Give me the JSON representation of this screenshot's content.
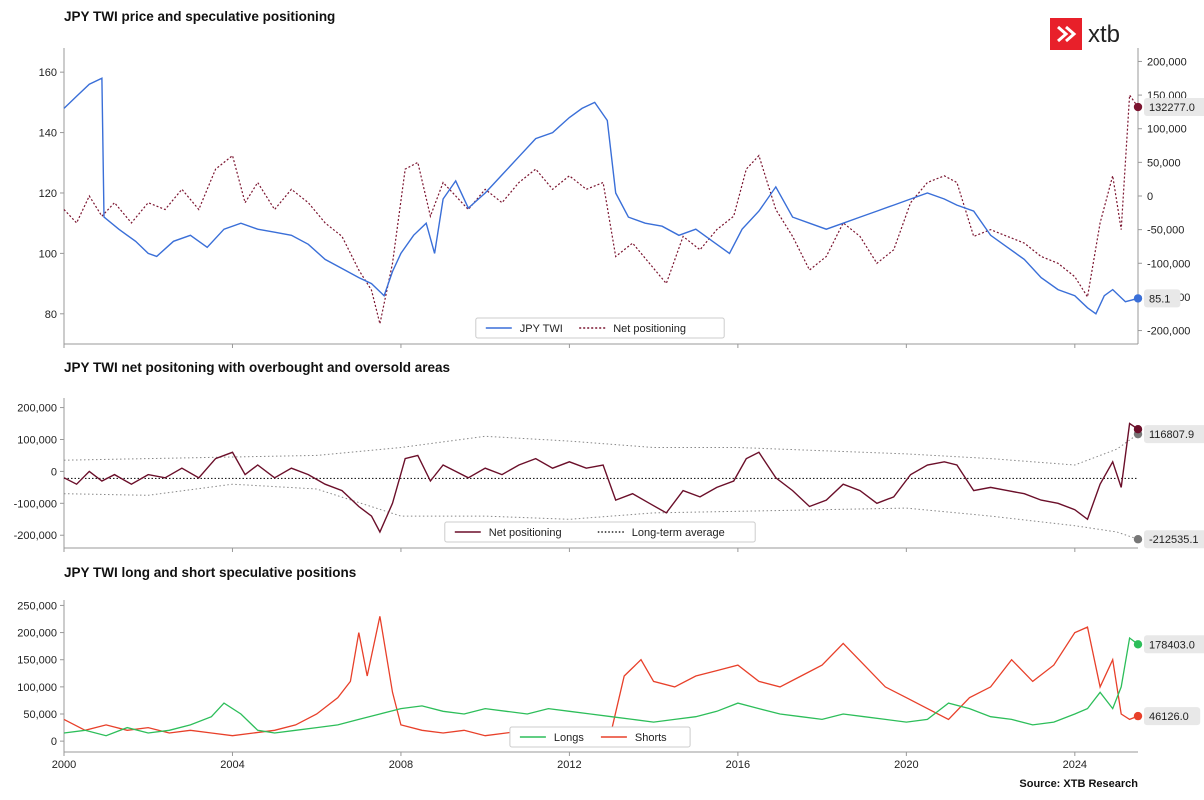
{
  "brand": {
    "logo_text": "xtb",
    "accent": "#e8202a"
  },
  "source": "Source: XTB Research",
  "colors": {
    "twi": "#3a6fd8",
    "net_dotted": "#7b1530",
    "net": "#6b0f2a",
    "avg": "#444444",
    "longs": "#2dbe5a",
    "shorts": "#e8402a",
    "band": "#888888"
  },
  "chart_data": [
    {
      "type": "line",
      "title": "JPY TWI price and speculative positioning",
      "x_ticks": [
        "2000",
        "2004",
        "2008",
        "2012",
        "2016",
        "2020",
        "2024"
      ],
      "xlim": [
        2000,
        2025.5
      ],
      "y_left_ticks": [
        "80",
        "100",
        "120",
        "140",
        "160"
      ],
      "ylim_left": [
        70,
        168
      ],
      "y_right_ticks": [
        "-200,000",
        "-150,000",
        "-100,000",
        "-50,000",
        "0",
        "50,000",
        "100,000",
        "150,000",
        "200,000"
      ],
      "ylim_right": [
        -220000,
        220000
      ],
      "series": [
        {
          "name": "JPY TWI",
          "axis": "left",
          "style": "solid",
          "x": [
            2000.0,
            2000.3,
            2000.6,
            2000.9,
            2000.95,
            2001.3,
            2001.7,
            2002.0,
            2002.2,
            2002.6,
            2003.0,
            2003.4,
            2003.8,
            2004.2,
            2004.6,
            2005.0,
            2005.4,
            2005.8,
            2006.2,
            2006.6,
            2007.0,
            2007.3,
            2007.6,
            2007.8,
            2008.0,
            2008.3,
            2008.6,
            2008.8,
            2009.0,
            2009.3,
            2009.6,
            2010.0,
            2010.4,
            2010.8,
            2011.2,
            2011.6,
            2012.0,
            2012.3,
            2012.6,
            2012.9,
            2013.1,
            2013.4,
            2013.8,
            2014.2,
            2014.6,
            2015.0,
            2015.4,
            2015.8,
            2016.1,
            2016.5,
            2016.9,
            2017.3,
            2017.7,
            2018.1,
            2018.5,
            2018.9,
            2019.3,
            2019.7,
            2020.1,
            2020.5,
            2020.9,
            2021.2,
            2021.6,
            2022.0,
            2022.4,
            2022.8,
            2023.2,
            2023.6,
            2024.0,
            2024.3,
            2024.5,
            2024.7,
            2024.9,
            2025.2,
            2025.5
          ],
          "y": [
            148,
            152,
            156,
            158,
            112,
            108,
            104,
            100,
            99,
            104,
            106,
            102,
            108,
            110,
            108,
            107,
            106,
            103,
            98,
            95,
            92,
            90,
            86,
            94,
            100,
            106,
            110,
            100,
            118,
            124,
            115,
            120,
            126,
            132,
            138,
            140,
            145,
            148,
            150,
            144,
            120,
            112,
            110,
            109,
            106,
            108,
            104,
            100,
            108,
            114,
            122,
            112,
            110,
            108,
            110,
            112,
            114,
            116,
            118,
            120,
            118,
            116,
            114,
            106,
            102,
            98,
            92,
            88,
            86,
            82,
            80,
            86,
            88,
            84,
            85.1
          ],
          "end_label": "85.1"
        },
        {
          "name": "Net positioning",
          "axis": "right",
          "style": "dotted",
          "x": [
            2000.0,
            2000.3,
            2000.6,
            2000.9,
            2001.2,
            2001.6,
            2002.0,
            2002.4,
            2002.8,
            2003.2,
            2003.6,
            2004.0,
            2004.3,
            2004.6,
            2005.0,
            2005.4,
            2005.8,
            2006.2,
            2006.6,
            2007.0,
            2007.3,
            2007.5,
            2007.8,
            2008.1,
            2008.4,
            2008.7,
            2009.0,
            2009.3,
            2009.6,
            2010.0,
            2010.4,
            2010.8,
            2011.2,
            2011.6,
            2012.0,
            2012.4,
            2012.8,
            2013.1,
            2013.5,
            2013.9,
            2014.3,
            2014.7,
            2015.1,
            2015.5,
            2015.9,
            2016.2,
            2016.5,
            2016.9,
            2017.3,
            2017.7,
            2018.1,
            2018.5,
            2018.9,
            2019.3,
            2019.7,
            2020.1,
            2020.5,
            2020.9,
            2021.2,
            2021.6,
            2022.0,
            2022.4,
            2022.8,
            2023.2,
            2023.6,
            2024.0,
            2024.3,
            2024.6,
            2024.9,
            2025.1,
            2025.3,
            2025.5
          ],
          "y": [
            -20000,
            -40000,
            0,
            -30000,
            -10000,
            -40000,
            -10000,
            -20000,
            10000,
            -20000,
            40000,
            60000,
            -10000,
            20000,
            -20000,
            10000,
            -10000,
            -40000,
            -60000,
            -110000,
            -140000,
            -190000,
            -100000,
            40000,
            50000,
            -30000,
            20000,
            0,
            -20000,
            10000,
            -10000,
            20000,
            40000,
            10000,
            30000,
            10000,
            20000,
            -90000,
            -70000,
            -100000,
            -130000,
            -60000,
            -80000,
            -50000,
            -30000,
            40000,
            60000,
            -20000,
            -60000,
            -110000,
            -90000,
            -40000,
            -60000,
            -100000,
            -80000,
            -10000,
            20000,
            30000,
            20000,
            -60000,
            -50000,
            -60000,
            -70000,
            -90000,
            -100000,
            -120000,
            -150000,
            -40000,
            30000,
            -50000,
            150000,
            132277
          ],
          "end_label": "132277.0"
        }
      ],
      "legend": [
        "JPY TWI",
        "Net positioning"
      ],
      "legend_position": "bottom-center"
    },
    {
      "type": "line",
      "title": "JPY TWI net positoning with overbought and oversold areas",
      "x_ticks": [
        "2000",
        "2004",
        "2008",
        "2012",
        "2016",
        "2020",
        "2024"
      ],
      "xlim": [
        2000,
        2025.5
      ],
      "y_ticks": [
        "-200,000",
        "-100,000",
        "0",
        "100,000",
        "200,000"
      ],
      "ylim": [
        -240000,
        230000
      ],
      "series": [
        {
          "name": "Net positioning",
          "style": "solid",
          "x": [
            2000.0,
            2000.3,
            2000.6,
            2000.9,
            2001.2,
            2001.6,
            2002.0,
            2002.4,
            2002.8,
            2003.2,
            2003.6,
            2004.0,
            2004.3,
            2004.6,
            2005.0,
            2005.4,
            2005.8,
            2006.2,
            2006.6,
            2007.0,
            2007.3,
            2007.5,
            2007.8,
            2008.1,
            2008.4,
            2008.7,
            2009.0,
            2009.3,
            2009.6,
            2010.0,
            2010.4,
            2010.8,
            2011.2,
            2011.6,
            2012.0,
            2012.4,
            2012.8,
            2013.1,
            2013.5,
            2013.9,
            2014.3,
            2014.7,
            2015.1,
            2015.5,
            2015.9,
            2016.2,
            2016.5,
            2016.9,
            2017.3,
            2017.7,
            2018.1,
            2018.5,
            2018.9,
            2019.3,
            2019.7,
            2020.1,
            2020.5,
            2020.9,
            2021.2,
            2021.6,
            2022.0,
            2022.4,
            2022.8,
            2023.2,
            2023.6,
            2024.0,
            2024.3,
            2024.6,
            2024.9,
            2025.1,
            2025.3,
            2025.5
          ],
          "y": [
            -20000,
            -40000,
            0,
            -30000,
            -10000,
            -40000,
            -10000,
            -20000,
            10000,
            -20000,
            40000,
            60000,
            -10000,
            20000,
            -20000,
            10000,
            -10000,
            -40000,
            -60000,
            -110000,
            -140000,
            -190000,
            -100000,
            40000,
            50000,
            -30000,
            20000,
            0,
            -20000,
            10000,
            -10000,
            20000,
            40000,
            10000,
            30000,
            10000,
            20000,
            -90000,
            -70000,
            -100000,
            -130000,
            -60000,
            -80000,
            -50000,
            -30000,
            40000,
            60000,
            -20000,
            -60000,
            -110000,
            -90000,
            -40000,
            -60000,
            -100000,
            -80000,
            -10000,
            20000,
            30000,
            20000,
            -60000,
            -50000,
            -60000,
            -70000,
            -90000,
            -100000,
            -120000,
            -150000,
            -40000,
            30000,
            -50000,
            150000,
            132277
          ],
          "end_label": "116807.9"
        },
        {
          "name": "Long-term average",
          "style": "dotted",
          "x": [
            2000.0,
            2025.5
          ],
          "y": [
            -22000,
            -22000
          ]
        },
        {
          "name": "upper band",
          "style": "dotted",
          "x": [
            2000.0,
            2002.0,
            2004.0,
            2006.0,
            2008.0,
            2010.0,
            2012.0,
            2014.0,
            2016.0,
            2018.0,
            2020.0,
            2022.0,
            2024.0,
            2025.0,
            2025.5
          ],
          "y": [
            35000,
            40000,
            45000,
            50000,
            75000,
            110000,
            95000,
            75000,
            75000,
            65000,
            55000,
            40000,
            20000,
            70000,
            116808
          ]
        },
        {
          "name": "lower band",
          "style": "dotted",
          "x": [
            2000.0,
            2002.0,
            2004.0,
            2006.0,
            2008.0,
            2010.0,
            2012.0,
            2014.0,
            2016.0,
            2018.0,
            2020.0,
            2022.0,
            2024.0,
            2025.0,
            2025.5
          ],
          "y": [
            -70000,
            -75000,
            -40000,
            -55000,
            -140000,
            -140000,
            -150000,
            -130000,
            -125000,
            -120000,
            -115000,
            -140000,
            -170000,
            -190000,
            -212535
          ]
        }
      ],
      "end_label_lower": "-212535.1",
      "legend": [
        "Net positioning",
        "Long-term average"
      ],
      "legend_position": "bottom-center"
    },
    {
      "type": "line",
      "title": "JPY TWI long and short speculative positions",
      "x_ticks": [
        "2000",
        "2004",
        "2008",
        "2012",
        "2016",
        "2020",
        "2024"
      ],
      "xlim": [
        2000,
        2025.5
      ],
      "y_ticks": [
        "0",
        "50,000",
        "100,000",
        "150,000",
        "200,000",
        "250,000"
      ],
      "ylim": [
        -20000,
        260000
      ],
      "series": [
        {
          "name": "Longs",
          "style": "solid",
          "x": [
            2000.0,
            2000.5,
            2001.0,
            2001.5,
            2002.0,
            2002.5,
            2003.0,
            2003.5,
            2003.8,
            2004.2,
            2004.6,
            2005.0,
            2005.5,
            2006.0,
            2006.5,
            2007.0,
            2007.5,
            2008.0,
            2008.5,
            2009.0,
            2009.5,
            2010.0,
            2010.5,
            2011.0,
            2011.5,
            2012.0,
            2012.5,
            2013.0,
            2013.5,
            2014.0,
            2014.5,
            2015.0,
            2015.5,
            2016.0,
            2016.5,
            2017.0,
            2017.5,
            2018.0,
            2018.5,
            2019.0,
            2019.5,
            2020.0,
            2020.5,
            2021.0,
            2021.5,
            2022.0,
            2022.5,
            2023.0,
            2023.5,
            2024.0,
            2024.3,
            2024.6,
            2024.9,
            2025.1,
            2025.3,
            2025.5
          ],
          "y": [
            15000,
            20000,
            10000,
            25000,
            15000,
            20000,
            30000,
            45000,
            70000,
            50000,
            20000,
            15000,
            20000,
            25000,
            30000,
            40000,
            50000,
            60000,
            65000,
            55000,
            50000,
            60000,
            55000,
            50000,
            60000,
            55000,
            50000,
            45000,
            40000,
            35000,
            40000,
            45000,
            55000,
            70000,
            60000,
            50000,
            45000,
            40000,
            50000,
            45000,
            40000,
            35000,
            40000,
            70000,
            60000,
            45000,
            40000,
            30000,
            35000,
            50000,
            60000,
            90000,
            60000,
            100000,
            190000,
            178403
          ],
          "end_label": "178403.0"
        },
        {
          "name": "Shorts",
          "style": "solid",
          "x": [
            2000.0,
            2000.5,
            2001.0,
            2001.5,
            2002.0,
            2002.5,
            2003.0,
            2003.5,
            2004.0,
            2004.5,
            2005.0,
            2005.5,
            2006.0,
            2006.5,
            2006.8,
            2007.0,
            2007.2,
            2007.5,
            2007.8,
            2008.0,
            2008.5,
            2009.0,
            2009.5,
            2010.0,
            2010.5,
            2011.0,
            2011.5,
            2012.0,
            2012.5,
            2013.0,
            2013.3,
            2013.7,
            2014.0,
            2014.5,
            2015.0,
            2015.5,
            2016.0,
            2016.5,
            2017.0,
            2017.5,
            2018.0,
            2018.5,
            2019.0,
            2019.5,
            2020.0,
            2020.5,
            2021.0,
            2021.5,
            2022.0,
            2022.5,
            2023.0,
            2023.5,
            2024.0,
            2024.3,
            2024.6,
            2024.9,
            2025.1,
            2025.3,
            2025.5
          ],
          "y": [
            40000,
            20000,
            30000,
            20000,
            25000,
            15000,
            20000,
            15000,
            10000,
            15000,
            20000,
            30000,
            50000,
            80000,
            110000,
            200000,
            120000,
            230000,
            90000,
            30000,
            20000,
            15000,
            20000,
            10000,
            15000,
            20000,
            10000,
            15000,
            10000,
            20000,
            120000,
            150000,
            110000,
            100000,
            120000,
            130000,
            140000,
            110000,
            100000,
            120000,
            140000,
            180000,
            140000,
            100000,
            80000,
            60000,
            40000,
            80000,
            100000,
            150000,
            110000,
            140000,
            200000,
            210000,
            100000,
            150000,
            50000,
            40000,
            46126
          ],
          "end_label": "46126.0"
        }
      ],
      "legend": [
        "Longs",
        "Shorts"
      ],
      "legend_position": "bottom-center"
    }
  ]
}
